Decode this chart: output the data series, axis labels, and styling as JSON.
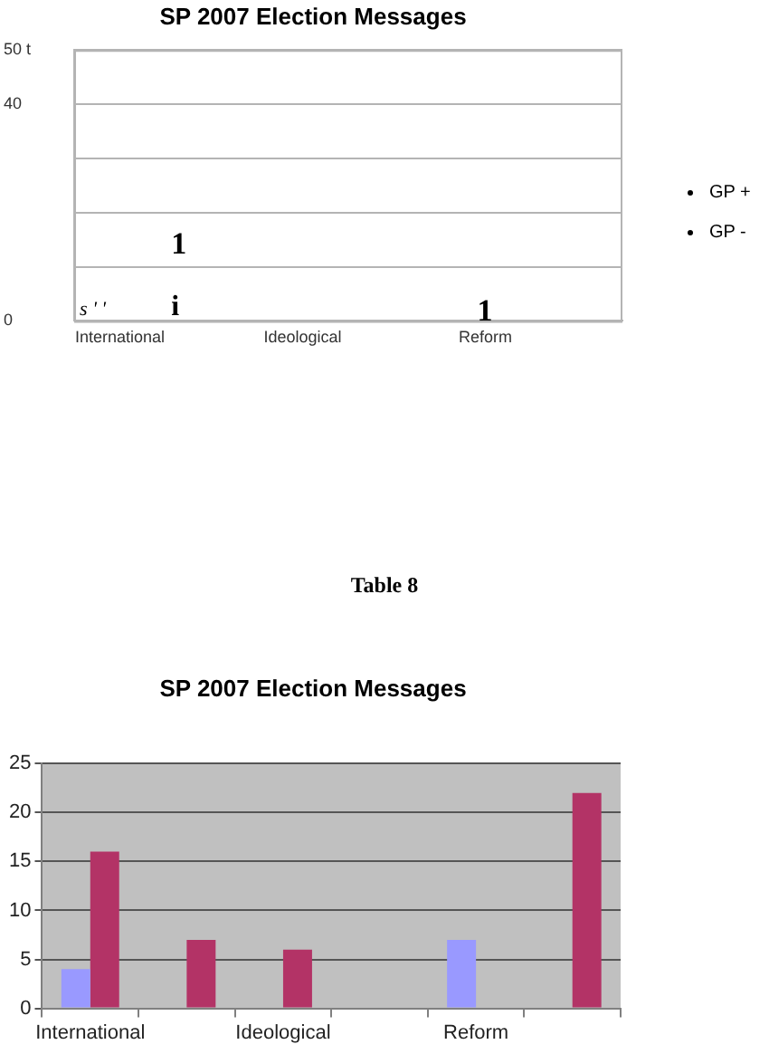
{
  "chart_data": [
    {
      "type": "bar",
      "title": "SP 2007 Election Messages",
      "categories": [
        "International",
        null,
        "Ideological",
        null,
        "Reform",
        null
      ],
      "series": [
        {
          "name": "GP +",
          "color": "#000000",
          "values": [
            null,
            null,
            null,
            null,
            null,
            null
          ]
        },
        {
          "name": "GP -",
          "color": "#000000",
          "values": [
            null,
            null,
            null,
            null,
            null,
            null
          ]
        }
      ],
      "ylim": [
        0,
        50
      ],
      "yticks": [
        0,
        {
          "value": 10,
          "label": null
        },
        {
          "value": 20,
          "label": null
        },
        {
          "value": 30,
          "label": null
        },
        40,
        {
          "value": 50,
          "label": "50 t"
        }
      ],
      "grid": "y",
      "legend": "right",
      "annotations": [
        "s ' '",
        "1",
        "i",
        "1"
      ]
    },
    {
      "type": "bar",
      "title": "SP 2007 Election Messages",
      "categories": [
        "International",
        null,
        "Ideological",
        null,
        "Reform",
        null
      ],
      "series": [
        {
          "color": "#9999ff",
          "values": [
            4,
            0,
            0,
            0,
            7,
            0
          ]
        },
        {
          "color": "#b33366",
          "values": [
            16,
            7,
            6,
            0,
            0,
            22
          ]
        }
      ],
      "ylim": [
        0,
        25
      ],
      "yticks": [
        0,
        5,
        10,
        15,
        20,
        25
      ],
      "grid": "y",
      "legend": false,
      "annotations": [
        "Table 8"
      ]
    }
  ]
}
